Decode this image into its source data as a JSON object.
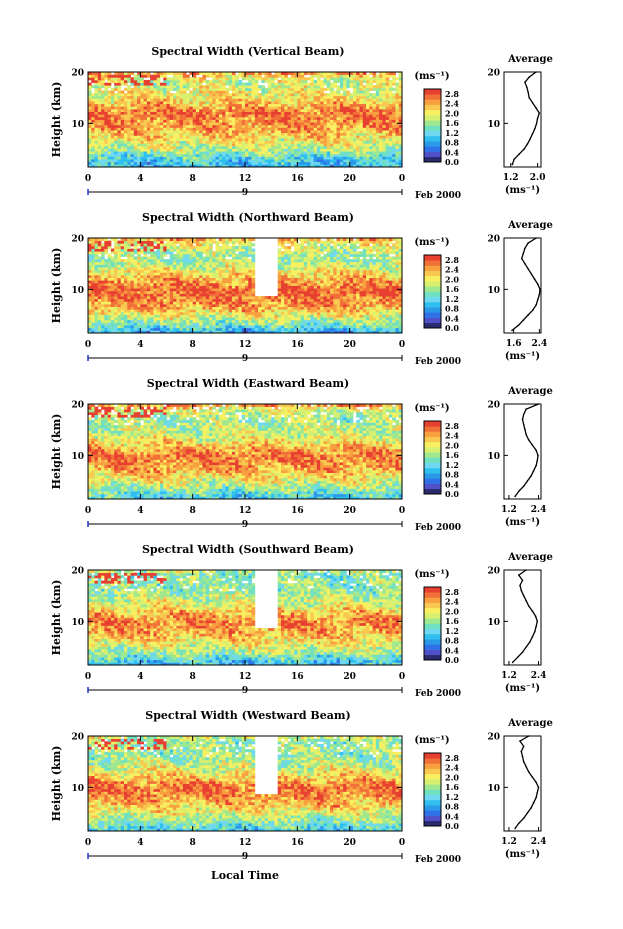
{
  "figure": {
    "xlabel": "Local Time",
    "date_label": "Feb 2000",
    "date_tick": "9",
    "ylabel": "Height (km)",
    "units_label": "(ms⁻¹)",
    "average_title": "Average",
    "average_xlabel": "(ms⁻¹)"
  },
  "colors": {
    "colorbar": [
      "#2a2a6e",
      "#5050c8",
      "#3070e8",
      "#2a9ae8",
      "#30c0f0",
      "#70d8f0",
      "#70e0c0",
      "#a0e890",
      "#d8f070",
      "#f8f060",
      "#f8c850",
      "#f8a040",
      "#f07038",
      "#e84030"
    ],
    "line": "#000000",
    "gap": "#ffffff"
  },
  "chart_data": [
    {
      "type": "heatmap",
      "title": "Spectral Width (Vertical Beam)",
      "xlabel": "Local Time",
      "ylabel": "Height (km)",
      "x_ticks": [
        "0",
        "4",
        "8",
        "12",
        "16",
        "20",
        "0"
      ],
      "xlim": [
        0,
        24
      ],
      "y_ticks": [
        "10",
        "20"
      ],
      "ylim": [
        1.5,
        20
      ],
      "colorbar": {
        "label": "(ms⁻¹)",
        "ticks": [
          "0.0",
          "0.4",
          "0.8",
          "1.2",
          "1.6",
          "2.0",
          "2.4",
          "2.8"
        ],
        "range": [
          0,
          3.0
        ]
      },
      "gap": null,
      "average_profile": {
        "title": "Average",
        "xlabel": "(ms⁻¹)",
        "x_ticks": [
          "1.2",
          "2.0"
        ],
        "xlim": [
          1.0,
          2.1
        ],
        "ylim": [
          1.5,
          20
        ],
        "y_ticks": [
          "10",
          "20"
        ],
        "height_km": [
          2,
          3,
          4,
          5,
          6,
          7,
          8,
          9,
          10,
          11,
          12,
          13,
          14,
          15,
          16,
          17,
          18,
          19,
          20
        ],
        "width_ms": [
          1.25,
          1.3,
          1.45,
          1.6,
          1.7,
          1.78,
          1.85,
          1.92,
          1.97,
          2.0,
          2.05,
          1.95,
          1.85,
          1.75,
          1.72,
          1.68,
          1.62,
          1.75,
          1.95
        ]
      }
    },
    {
      "type": "heatmap",
      "title": "Spectral Width (Northward Beam)",
      "xlabel": "Local Time",
      "ylabel": "Height (km)",
      "x_ticks": [
        "0",
        "4",
        "8",
        "12",
        "16",
        "20",
        "0"
      ],
      "xlim": [
        0,
        24
      ],
      "y_ticks": [
        "10",
        "20"
      ],
      "ylim": [
        1.5,
        20
      ],
      "colorbar": {
        "label": "(ms⁻¹)",
        "ticks": [
          "0.0",
          "0.4",
          "0.8",
          "1.2",
          "1.6",
          "2.0",
          "2.4",
          "2.8"
        ],
        "range": [
          0,
          3.0
        ]
      },
      "gap": [
        12.8,
        14.6
      ],
      "average_profile": {
        "title": "Average",
        "xlabel": "(ms⁻¹)",
        "x_ticks": [
          "1.6",
          "2.4"
        ],
        "xlim": [
          1.3,
          2.45
        ],
        "ylim": [
          1.5,
          20
        ],
        "y_ticks": [
          "10",
          "20"
        ],
        "height_km": [
          2,
          3,
          4,
          5,
          6,
          7,
          8,
          9,
          10,
          11,
          12,
          13,
          14,
          15,
          16,
          17,
          18,
          19,
          20
        ],
        "width_ms": [
          1.55,
          1.75,
          1.9,
          2.05,
          2.2,
          2.3,
          2.35,
          2.4,
          2.42,
          2.35,
          2.25,
          2.15,
          2.05,
          1.95,
          1.85,
          1.9,
          1.95,
          2.05,
          2.3
        ]
      }
    },
    {
      "type": "heatmap",
      "title": "Spectral Width (Eastward Beam)",
      "xlabel": "Local Time",
      "ylabel": "Height (km)",
      "x_ticks": [
        "0",
        "4",
        "8",
        "12",
        "16",
        "20",
        "0"
      ],
      "xlim": [
        0,
        24
      ],
      "y_ticks": [
        "10",
        "20"
      ],
      "ylim": [
        1.5,
        20
      ],
      "colorbar": {
        "label": "(ms⁻¹)",
        "ticks": [
          "0.0",
          "0.4",
          "0.8",
          "1.2",
          "1.6",
          "2.0",
          "2.4",
          "2.8"
        ],
        "range": [
          0,
          3.0
        ]
      },
      "gap": null,
      "average_profile": {
        "title": "Average",
        "xlabel": "(ms⁻¹)",
        "x_ticks": [
          "1.2",
          "2.4"
        ],
        "xlim": [
          1.0,
          2.5
        ],
        "ylim": [
          1.5,
          20
        ],
        "y_ticks": [
          "10",
          "20"
        ],
        "height_km": [
          2,
          3,
          4,
          5,
          6,
          7,
          8,
          9,
          10,
          11,
          12,
          13,
          14,
          15,
          16,
          17,
          18,
          19,
          20
        ],
        "width_ms": [
          1.45,
          1.6,
          1.8,
          1.95,
          2.1,
          2.2,
          2.3,
          2.35,
          2.38,
          2.3,
          2.15,
          2.0,
          1.9,
          1.85,
          1.8,
          1.75,
          1.8,
          1.9,
          2.4
        ]
      }
    },
    {
      "type": "heatmap",
      "title": "Spectral Width (Southward Beam)",
      "xlabel": "Local Time",
      "ylabel": "Height (km)",
      "x_ticks": [
        "0",
        "4",
        "8",
        "12",
        "16",
        "20",
        "0"
      ],
      "xlim": [
        0,
        24
      ],
      "y_ticks": [
        "10",
        "20"
      ],
      "ylim": [
        1.5,
        20
      ],
      "colorbar": {
        "label": "(ms⁻¹)",
        "ticks": [
          "0.0",
          "0.4",
          "0.8",
          "1.2",
          "1.6",
          "2.0",
          "2.4",
          "2.8"
        ],
        "range": [
          0,
          3.0
        ]
      },
      "gap": [
        12.8,
        14.6
      ],
      "average_profile": {
        "title": "Average",
        "xlabel": "(ms⁻¹)",
        "x_ticks": [
          "1.2",
          "2.4"
        ],
        "xlim": [
          1.0,
          2.5
        ],
        "ylim": [
          1.5,
          20
        ],
        "y_ticks": [
          "10",
          "20"
        ],
        "height_km": [
          2,
          3,
          4,
          5,
          6,
          7,
          8,
          9,
          10,
          11,
          12,
          13,
          14,
          15,
          16,
          17,
          18,
          19,
          20
        ],
        "width_ms": [
          1.35,
          1.55,
          1.75,
          1.9,
          2.05,
          2.15,
          2.25,
          2.3,
          2.35,
          2.28,
          2.15,
          2.0,
          1.9,
          1.8,
          1.7,
          1.65,
          1.75,
          1.6,
          1.9
        ]
      }
    },
    {
      "type": "heatmap",
      "title": "Spectral Width (Westward Beam)",
      "xlabel": "Local Time",
      "ylabel": "Height (km)",
      "x_ticks": [
        "0",
        "4",
        "8",
        "12",
        "16",
        "20",
        "0"
      ],
      "xlim": [
        0,
        24
      ],
      "y_ticks": [
        "10",
        "20"
      ],
      "ylim": [
        1.5,
        20
      ],
      "colorbar": {
        "label": "(ms⁻¹)",
        "ticks": [
          "0.0",
          "0.4",
          "0.8",
          "1.2",
          "1.6",
          "2.0",
          "2.4",
          "2.8"
        ],
        "range": [
          0,
          3.0
        ]
      },
      "gap": [
        12.8,
        14.6
      ],
      "average_profile": {
        "title": "Average",
        "xlabel": "(ms⁻¹)",
        "x_ticks": [
          "1.2",
          "2.4"
        ],
        "xlim": [
          1.0,
          2.5
        ],
        "ylim": [
          1.5,
          20
        ],
        "y_ticks": [
          "10",
          "20"
        ],
        "height_km": [
          2,
          3,
          4,
          5,
          6,
          7,
          8,
          9,
          10,
          11,
          12,
          13,
          14,
          15,
          16,
          17,
          18,
          19,
          20
        ],
        "width_ms": [
          1.45,
          1.6,
          1.8,
          1.95,
          2.1,
          2.2,
          2.3,
          2.35,
          2.4,
          2.3,
          2.15,
          2.0,
          1.9,
          1.8,
          1.75,
          1.7,
          1.8,
          1.65,
          2.0
        ]
      }
    }
  ]
}
